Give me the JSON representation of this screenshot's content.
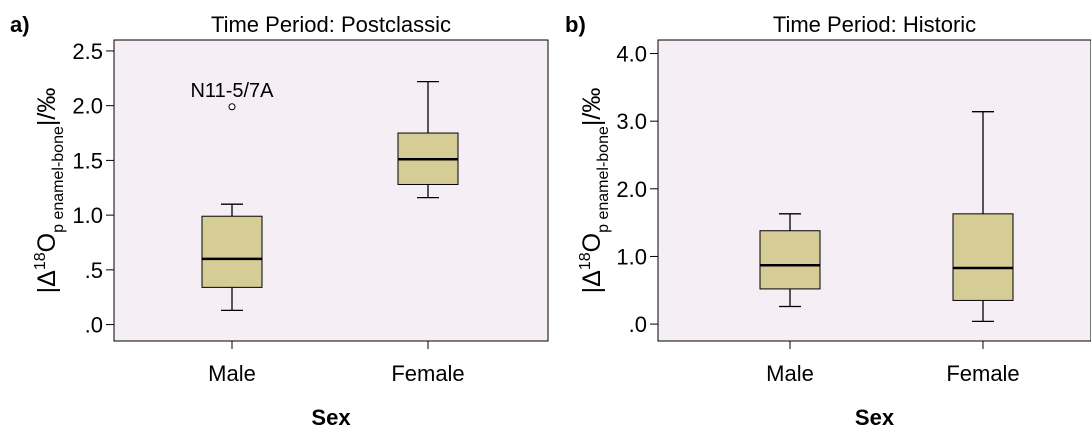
{
  "chart_data": [
    {
      "type": "box",
      "panel_label": "a)",
      "title": "Time Period: Postclassic",
      "xlabel": "Sex",
      "ylabel": {
        "prefix": "|Δ",
        "sup": "18",
        "main": "O",
        "sub": "p enamel-bone",
        "suffix": "|/‰"
      },
      "ylim": [
        -0.15,
        2.6
      ],
      "yticks": [
        {
          "value": 0.0,
          "label": ".0"
        },
        {
          "value": 0.5,
          "label": ".5"
        },
        {
          "value": 1.0,
          "label": "1.0"
        },
        {
          "value": 1.5,
          "label": "1.5"
        },
        {
          "value": 2.0,
          "label": "2.0"
        },
        {
          "value": 2.5,
          "label": "2.5"
        }
      ],
      "categories": [
        "Male",
        "Female"
      ],
      "boxes": [
        {
          "category": "Male",
          "min": 0.13,
          "q1": 0.34,
          "median": 0.6,
          "q3": 0.99,
          "max": 1.1,
          "outliers": [
            {
              "value": 1.99,
              "label": "N11-5/7A"
            }
          ]
        },
        {
          "category": "Female",
          "min": 1.16,
          "q1": 1.28,
          "median": 1.51,
          "q3": 1.75,
          "max": 2.22,
          "outliers": []
        }
      ],
      "box_color": "#d6cd96",
      "plot_bg": "#f5eef5",
      "grid": false,
      "legend": "none"
    },
    {
      "type": "box",
      "panel_label": "b)",
      "title": "Time Period: Historic",
      "xlabel": "Sex",
      "ylabel": {
        "prefix": "|Δ",
        "sup": "18",
        "main": "O",
        "sub": "p enamel-bone",
        "suffix": "|/‰"
      },
      "ylim": [
        -0.25,
        4.2
      ],
      "yticks": [
        {
          "value": 0.0,
          "label": ".0"
        },
        {
          "value": 1.0,
          "label": "1.0"
        },
        {
          "value": 2.0,
          "label": "2.0"
        },
        {
          "value": 3.0,
          "label": "3.0"
        },
        {
          "value": 4.0,
          "label": "4.0"
        }
      ],
      "categories": [
        "Male",
        "Female"
      ],
      "boxes": [
        {
          "category": "Male",
          "min": 0.26,
          "q1": 0.52,
          "median": 0.87,
          "q3": 1.38,
          "max": 1.63,
          "outliers": []
        },
        {
          "category": "Female",
          "min": 0.04,
          "q1": 0.35,
          "median": 0.83,
          "q3": 1.63,
          "max": 3.14,
          "outliers": []
        }
      ],
      "box_color": "#d6cd96",
      "plot_bg": "#f5eef5",
      "grid": false,
      "legend": "none"
    }
  ]
}
